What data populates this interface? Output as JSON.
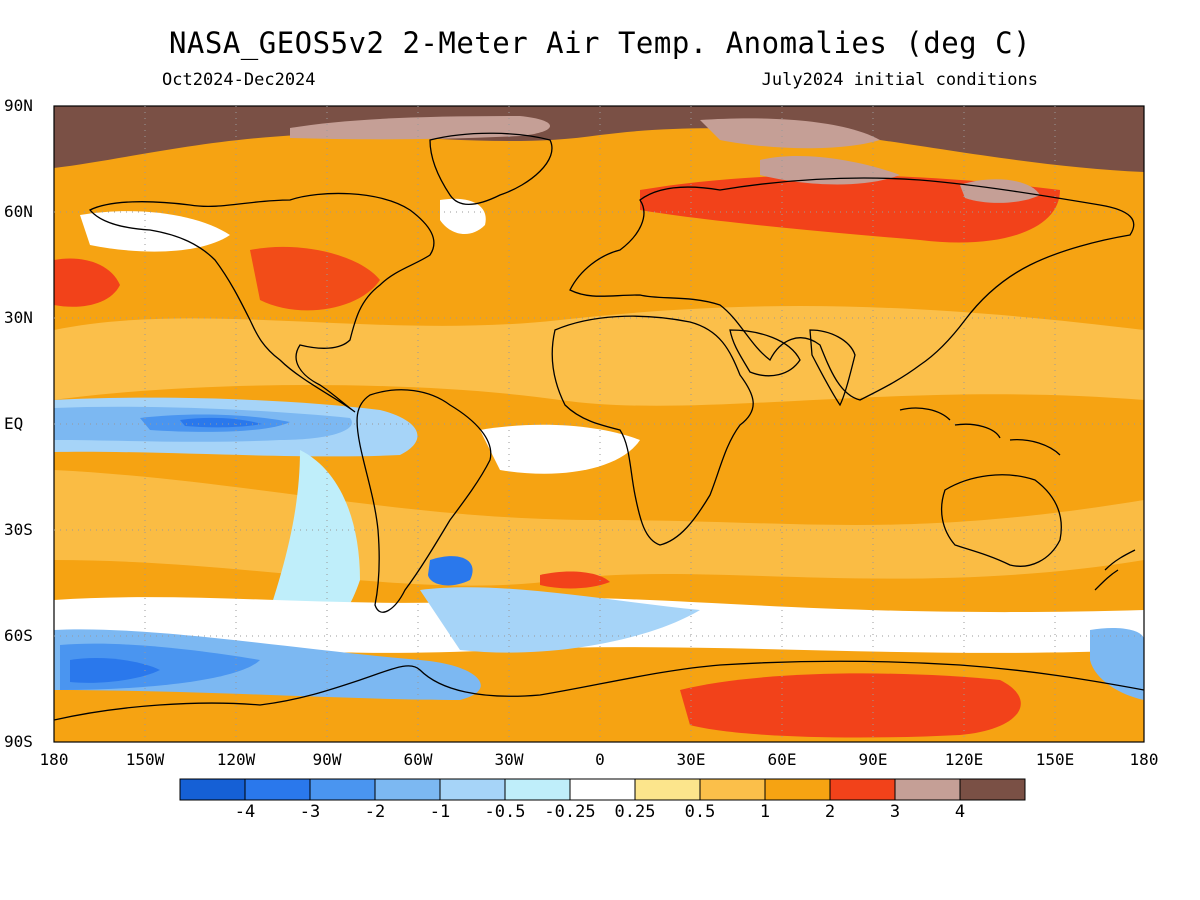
{
  "title": "NASA_GEOS5v2 2-Meter Air Temp. Anomalies (deg C)",
  "period": "Oct2024-Dec2024",
  "init": "July2024 initial conditions",
  "lat_ticks": [
    "90N",
    "60N",
    "30N",
    "EQ",
    "30S",
    "60S",
    "90S"
  ],
  "lon_ticks": [
    "180",
    "150W",
    "120W",
    "90W",
    "60W",
    "30W",
    "0",
    "30E",
    "60E",
    "90E",
    "120E",
    "150E",
    "180"
  ],
  "colorbar": {
    "colors": [
      "#1560d6",
      "#2a78ec",
      "#4a95f0",
      "#7cb8f2",
      "#a6d4f8",
      "#bfeefa",
      "#ffffff",
      "#fce58c",
      "#fbbf4a",
      "#f6a312",
      "#f2421a",
      "#c59f96",
      "#7a5045"
    ],
    "labels": [
      "-4",
      "-3",
      "-2",
      "-1",
      "-0.5",
      "-0.25",
      "0.25",
      "0.5",
      "1",
      "2",
      "3",
      "4"
    ]
  }
}
